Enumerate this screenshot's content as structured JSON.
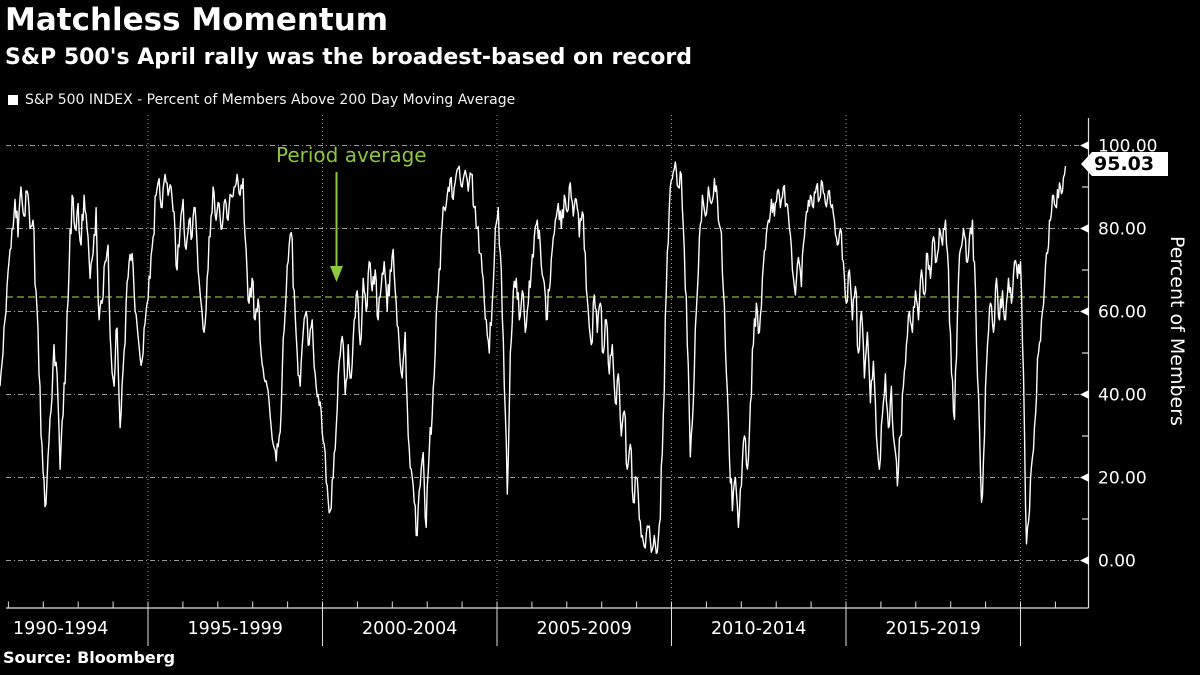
{
  "header": {
    "title": "Matchless Momentum",
    "subtitle": "S&P 500's April rally was the broadest-based on record"
  },
  "legend": {
    "marker": "white-square",
    "label": "S&P 500 INDEX - Percent of Members Above 200 Day Moving Average"
  },
  "annotation": {
    "text": "Period average",
    "value": 63.5
  },
  "last_value_label": "95.03",
  "source": "Source: Bloomberg",
  "colors": {
    "background": "#000000",
    "line": "#ffffff",
    "accent_green": "#8dc63f",
    "avg_line_green": "#84b83c",
    "grid": "#9a9a9a",
    "axis": "#e0e0e0",
    "label_bg": "#ffffff",
    "label_text": "#000000"
  },
  "y_axis": {
    "title": "Percent of Members",
    "ticks": [
      "100.00",
      "80.00",
      "60.00",
      "40.00",
      "20.00",
      "0.00"
    ],
    "tick_values": [
      100,
      80,
      60,
      40,
      20,
      0
    ],
    "minor_tick_values": [
      90,
      70,
      50,
      30,
      10
    ],
    "range_min": 0,
    "range_max": 100
  },
  "x_axis": {
    "labels": [
      "1990-1994",
      "1995-1999",
      "2000-2004",
      "2005-2009",
      "2010-2014",
      "2015-2019"
    ],
    "group_start_years": [
      1990,
      1995,
      2000,
      2005,
      2010,
      2015
    ],
    "boundary_years": [
      1995,
      2000,
      2005,
      2010,
      2015,
      2020
    ]
  },
  "chart_data": {
    "type": "line",
    "title": "S&P 500 INDEX - Percent of Members Above 200 Day Moving Average",
    "xlabel": "",
    "ylabel": "Percent of Members",
    "ylim": [
      0,
      100
    ],
    "grid": true,
    "legend_position": "top-left",
    "period_average": 63.5,
    "last_value": 95.03,
    "x_start_year": 1990.76,
    "x_step_years": 0.086,
    "values": [
      42,
      50,
      60,
      72,
      80,
      87,
      78,
      90,
      83,
      89,
      80,
      82,
      65,
      45,
      28,
      13,
      25,
      36,
      52,
      45,
      22,
      35,
      50,
      70,
      88,
      80,
      86,
      76,
      88,
      80,
      68,
      74,
      85,
      58,
      62,
      72,
      76,
      50,
      42,
      56,
      32,
      46,
      62,
      72,
      74,
      60,
      54,
      47,
      56,
      62,
      68,
      78,
      88,
      92,
      85,
      93,
      88,
      90,
      84,
      70,
      80,
      87,
      75,
      82,
      78,
      85,
      70,
      62,
      55,
      68,
      78,
      90,
      82,
      86,
      80,
      87,
      82,
      88,
      90,
      93,
      88,
      92,
      75,
      62,
      68,
      58,
      63,
      50,
      44,
      42,
      35,
      28,
      24,
      30,
      45,
      60,
      72,
      79,
      65,
      50,
      42,
      55,
      60,
      52,
      58,
      45,
      40,
      36,
      28,
      18,
      12,
      20,
      32,
      48,
      54,
      40,
      52,
      44,
      58,
      65,
      52,
      68,
      60,
      72,
      65,
      70,
      58,
      66,
      72,
      60,
      70,
      75,
      62,
      52,
      44,
      55,
      30,
      22,
      14,
      6,
      18,
      26,
      8,
      26,
      35,
      50,
      65,
      78,
      85,
      88,
      92,
      87,
      93,
      95,
      90,
      94,
      89,
      93,
      85,
      80,
      74,
      68,
      58,
      50,
      62,
      80,
      85,
      70,
      42,
      16,
      50,
      65,
      68,
      58,
      65,
      55,
      62,
      70,
      78,
      82,
      76,
      68,
      58,
      65,
      75,
      82,
      86,
      80,
      88,
      84,
      91,
      83,
      87,
      78,
      84,
      74,
      60,
      52,
      64,
      55,
      62,
      50,
      58,
      45,
      52,
      38,
      45,
      30,
      36,
      22,
      28,
      14,
      20,
      10,
      6,
      3,
      8,
      2,
      6,
      2,
      10,
      35,
      65,
      85,
      92,
      96,
      90,
      93,
      75,
      52,
      25,
      38,
      60,
      78,
      88,
      83,
      90,
      86,
      92,
      87,
      80,
      65,
      45,
      25,
      12,
      20,
      8,
      18,
      30,
      22,
      38,
      52,
      62,
      55,
      68,
      75,
      82,
      87,
      83,
      89,
      85,
      90,
      86,
      80,
      70,
      64,
      73,
      66,
      78,
      84,
      88,
      85,
      90,
      87,
      91,
      86,
      89,
      85,
      82,
      76,
      80,
      72,
      62,
      70,
      58,
      66,
      50,
      60,
      44,
      55,
      38,
      48,
      30,
      22,
      35,
      45,
      32,
      42,
      28,
      18,
      30,
      42,
      52,
      60,
      55,
      65,
      58,
      70,
      64,
      74,
      68,
      78,
      72,
      80,
      76,
      82,
      70,
      45,
      34,
      60,
      75,
      80,
      72,
      78,
      82,
      65,
      40,
      14,
      30,
      52,
      62,
      55,
      68,
      58,
      65,
      58,
      68,
      62,
      72,
      68,
      72,
      45,
      4,
      12,
      25,
      35,
      50,
      58,
      66,
      74,
      82,
      88,
      85,
      91,
      89,
      95.03
    ]
  }
}
